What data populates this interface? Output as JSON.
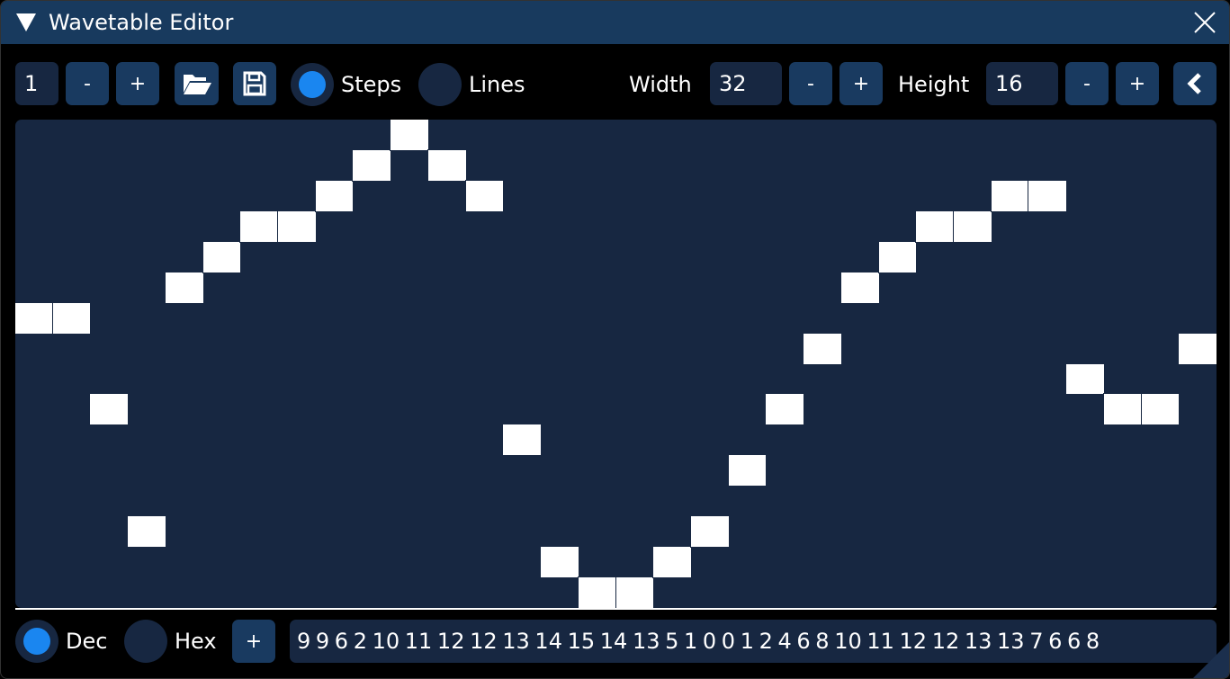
{
  "window": {
    "title": "Wavetable Editor"
  },
  "toolbar": {
    "index": "1",
    "minus": "-",
    "plus": "+",
    "open_icon": "folder-open-icon",
    "save_icon": "floppy-save-icon",
    "steps_label": "Steps",
    "lines_label": "Lines",
    "mode_selected": "Steps",
    "width_label": "Width",
    "width_value": "32",
    "height_label": "Height",
    "height_value": "16",
    "collapse_icon": "chevron-left-icon"
  },
  "bottom": {
    "dec_label": "Dec",
    "hex_label": "Hex",
    "format_selected": "Dec",
    "add": "+",
    "values_text": "9 9 6 2 10 11 12 12 13 14 15 14 13 5 1 0 0 1 2 4 6 8 10 11 12 12 13 13 7 6 6 8"
  },
  "wave": {
    "width": 32,
    "height": 16,
    "values": [
      9,
      9,
      6,
      2,
      10,
      11,
      12,
      12,
      13,
      14,
      15,
      14,
      13,
      5,
      1,
      0,
      0,
      1,
      2,
      4,
      6,
      8,
      10,
      11,
      12,
      12,
      13,
      13,
      7,
      6,
      6,
      8
    ]
  },
  "colors": {
    "accent": "#1a86f0",
    "button": "#193a60",
    "panel": "#172741",
    "titlebar": "#183a5e"
  }
}
